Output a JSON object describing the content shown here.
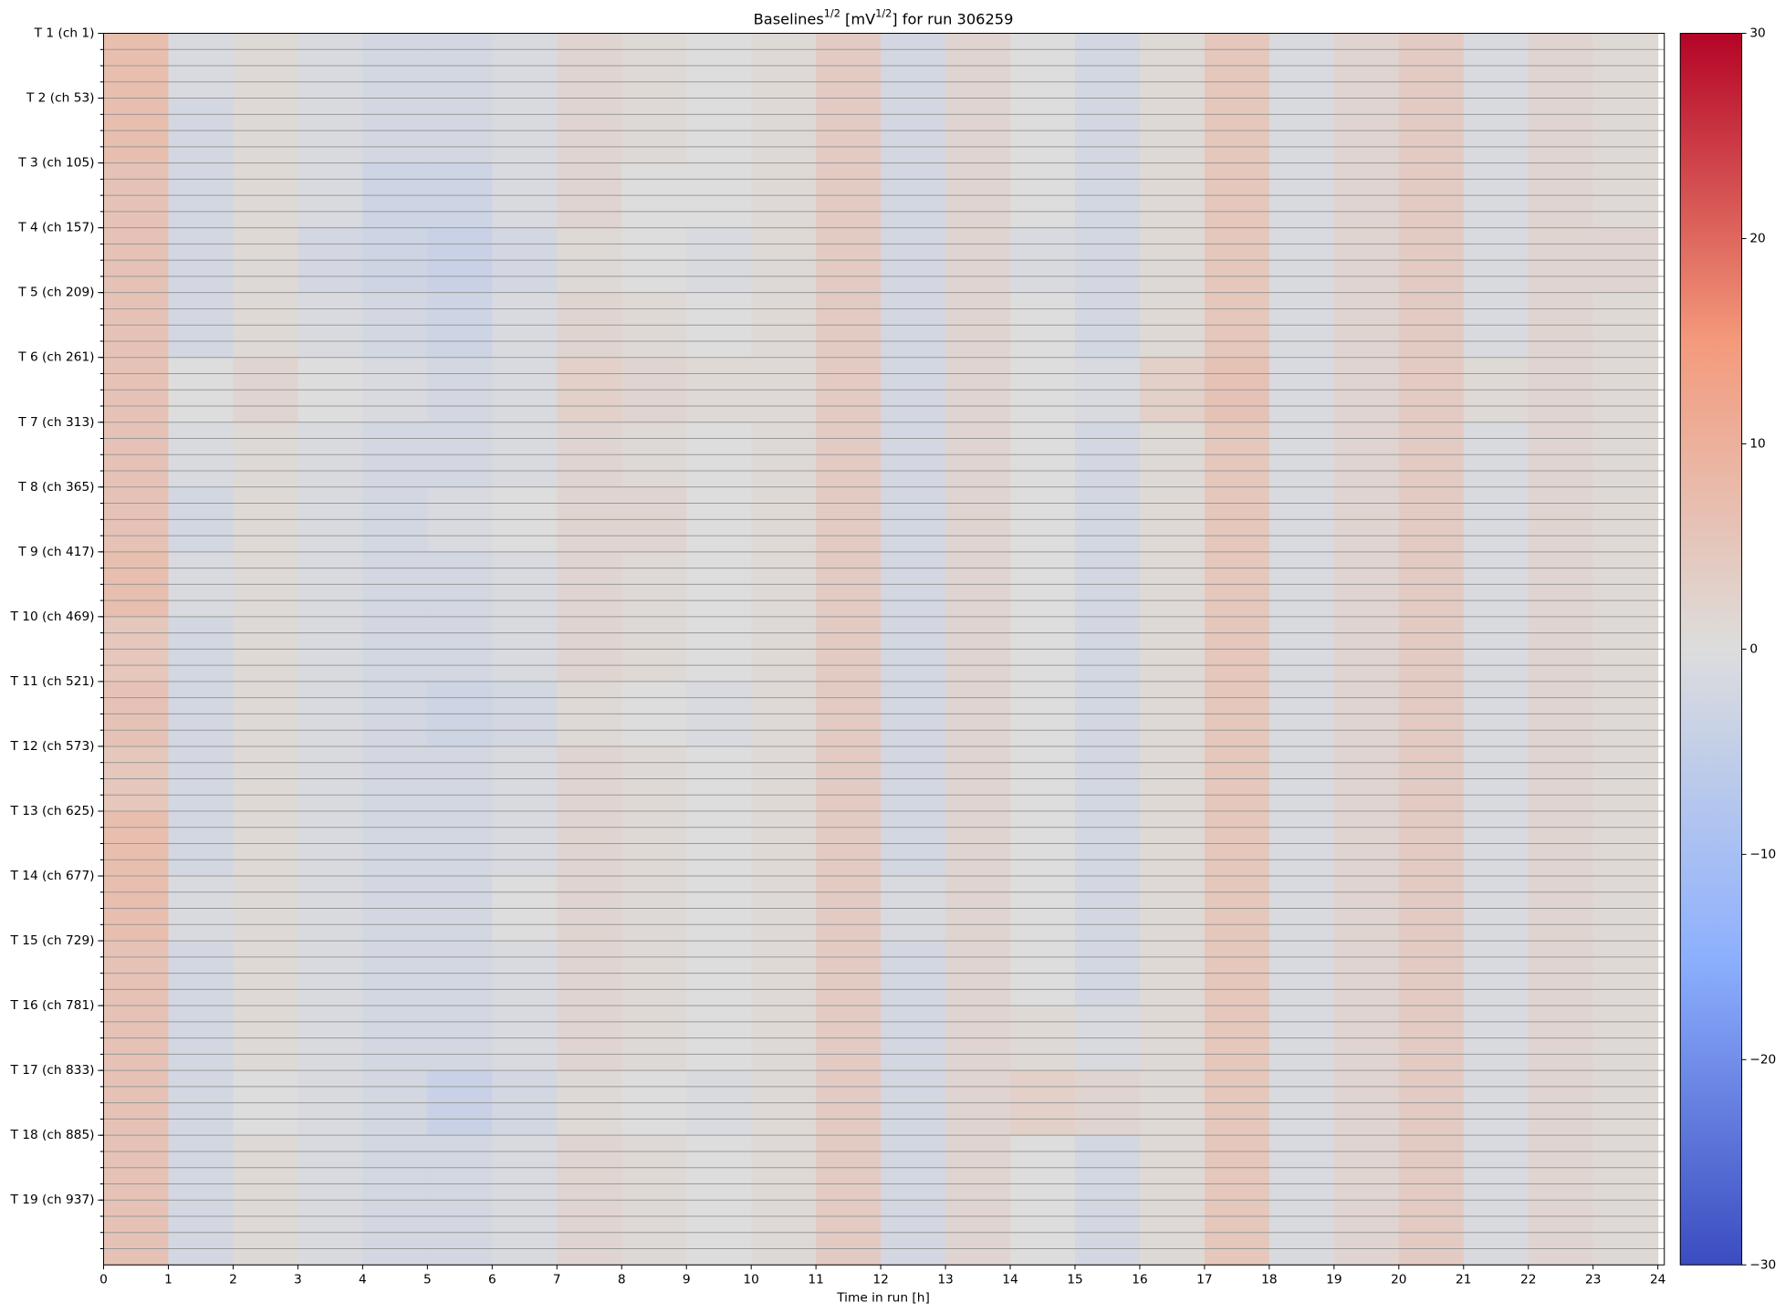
{
  "chart_data": {
    "type": "heatmap",
    "title": [
      "Baselines",
      "1/2",
      " [mV",
      "1/2",
      "] for run 306259"
    ],
    "xlabel": "Time in run [h]",
    "colormap": "coolwarm",
    "rows": [
      "T 1 (ch 1)",
      "T 2 (ch 53)",
      "T 3 (ch 105)",
      "T 4 (ch 157)",
      "T 5 (ch 209)",
      "T 6 (ch 261)",
      "T 7 (ch 313)",
      "T 8 (ch 365)",
      "T 9 (ch 417)",
      "T 10 (ch 469)",
      "T 11 (ch 521)",
      "T 12 (ch 573)",
      "T 13 (ch 625)",
      "T 14 (ch 677)",
      "T 15 (ch 729)",
      "T 16 (ch 781)",
      "T 17 (ch 833)",
      "T 18 (ch 885)",
      "T 19 (ch 937)"
    ],
    "x": [
      0,
      1,
      2,
      3,
      4,
      5,
      6,
      7,
      8,
      9,
      10,
      11,
      12,
      13,
      14,
      15,
      16,
      17,
      18,
      19,
      20,
      21,
      22,
      23
    ],
    "xlim": [
      0,
      24.1
    ],
    "xticks": [
      0,
      1,
      2,
      3,
      4,
      5,
      6,
      7,
      8,
      9,
      10,
      11,
      12,
      13,
      14,
      15,
      16,
      17,
      18,
      19,
      20,
      21,
      22,
      23,
      24
    ],
    "zlim": [
      -30,
      30
    ],
    "zticks": [
      {
        "value": -30,
        "label": "−30"
      },
      {
        "value": -20,
        "label": "−20"
      },
      {
        "value": -10,
        "label": "−10"
      },
      0,
      10,
      20,
      30
    ],
    "z": [
      [
        7,
        -1,
        1,
        -1,
        -2,
        -2,
        -1,
        2,
        1,
        0,
        1,
        4,
        -2,
        2,
        0,
        -2,
        1,
        5,
        -1,
        2,
        4,
        -1,
        2,
        1
      ],
      [
        7,
        -2,
        1,
        -1,
        -2,
        -2,
        -1,
        2,
        1,
        0,
        1,
        4,
        -2,
        2,
        0,
        -2,
        1,
        5,
        -1,
        2,
        4,
        -1,
        2,
        1
      ],
      [
        6,
        -2,
        1,
        -1,
        -3,
        -3,
        -1,
        2,
        0,
        0,
        1,
        4,
        -2,
        2,
        0,
        -2,
        1,
        5,
        -1,
        2,
        4,
        -1,
        2,
        1
      ],
      [
        6,
        -2,
        1,
        -2,
        -3,
        -4,
        -2,
        1,
        0,
        -1,
        1,
        4,
        -2,
        2,
        -1,
        -2,
        1,
        5,
        -1,
        2,
        4,
        -1,
        2,
        2
      ],
      [
        6,
        -2,
        1,
        -1,
        -2,
        -3,
        -1,
        2,
        1,
        0,
        1,
        4,
        -2,
        2,
        0,
        -2,
        1,
        5,
        -1,
        2,
        4,
        -1,
        2,
        1
      ],
      [
        6,
        0,
        2,
        0,
        -1,
        -2,
        -1,
        3,
        2,
        1,
        1,
        4,
        -2,
        2,
        0,
        -1,
        3,
        6,
        -1,
        2,
        4,
        1,
        2,
        1
      ],
      [
        6,
        -1,
        1,
        -1,
        -2,
        -2,
        -1,
        2,
        1,
        0,
        1,
        4,
        -2,
        2,
        0,
        -2,
        1,
        5,
        -1,
        2,
        4,
        -1,
        2,
        1
      ],
      [
        6,
        -2,
        1,
        -1,
        -2,
        -1,
        0,
        2,
        2,
        0,
        1,
        4,
        -2,
        2,
        0,
        -2,
        1,
        5,
        -1,
        2,
        4,
        -1,
        2,
        1
      ],
      [
        7,
        -1,
        1,
        -1,
        -2,
        -2,
        -1,
        2,
        1,
        0,
        1,
        4,
        -2,
        2,
        0,
        -2,
        1,
        5,
        -1,
        2,
        4,
        -1,
        2,
        1
      ],
      [
        5,
        -2,
        1,
        -1,
        -2,
        -2,
        -1,
        2,
        1,
        0,
        1,
        4,
        -2,
        2,
        0,
        -2,
        1,
        5,
        -1,
        2,
        4,
        -1,
        2,
        1
      ],
      [
        6,
        -2,
        1,
        -1,
        -2,
        -3,
        -2,
        1,
        0,
        -1,
        1,
        4,
        -2,
        2,
        0,
        -2,
        1,
        5,
        -1,
        2,
        4,
        -1,
        2,
        1
      ],
      [
        5,
        -2,
        1,
        -1,
        -2,
        -2,
        -1,
        2,
        1,
        0,
        1,
        4,
        -2,
        2,
        0,
        -2,
        1,
        5,
        -1,
        2,
        4,
        -1,
        2,
        1
      ],
      [
        7,
        -2,
        1,
        -1,
        -2,
        -2,
        -1,
        2,
        1,
        0,
        1,
        4,
        -2,
        2,
        0,
        -2,
        1,
        5,
        -1,
        2,
        4,
        -1,
        2,
        1
      ],
      [
        7,
        -1,
        1,
        -1,
        -2,
        -2,
        0,
        2,
        1,
        0,
        1,
        4,
        -1,
        2,
        0,
        -2,
        1,
        5,
        -1,
        2,
        4,
        -1,
        2,
        1
      ],
      [
        6,
        -2,
        1,
        -1,
        -2,
        -2,
        -1,
        2,
        1,
        0,
        1,
        4,
        -2,
        2,
        0,
        -2,
        1,
        5,
        -1,
        2,
        4,
        -1,
        2,
        1
      ],
      [
        6,
        -2,
        1,
        -1,
        -2,
        -2,
        -1,
        2,
        1,
        0,
        1,
        4,
        -2,
        2,
        1,
        -1,
        1,
        5,
        -1,
        2,
        4,
        -1,
        2,
        1
      ],
      [
        6,
        -2,
        0,
        -1,
        -2,
        -4,
        -2,
        1,
        0,
        -1,
        1,
        4,
        -2,
        2,
        3,
        2,
        1,
        5,
        -1,
        2,
        4,
        -1,
        2,
        1
      ],
      [
        6,
        -2,
        1,
        -1,
        -2,
        -2,
        -1,
        2,
        1,
        0,
        1,
        4,
        -2,
        2,
        0,
        -2,
        1,
        5,
        -1,
        2,
        4,
        -1,
        2,
        1
      ],
      [
        6,
        -2,
        1,
        -1,
        -2,
        -2,
        -1,
        2,
        1,
        0,
        1,
        4,
        -2,
        2,
        0,
        -2,
        1,
        5,
        -1,
        2,
        4,
        -1,
        2,
        1
      ]
    ]
  }
}
